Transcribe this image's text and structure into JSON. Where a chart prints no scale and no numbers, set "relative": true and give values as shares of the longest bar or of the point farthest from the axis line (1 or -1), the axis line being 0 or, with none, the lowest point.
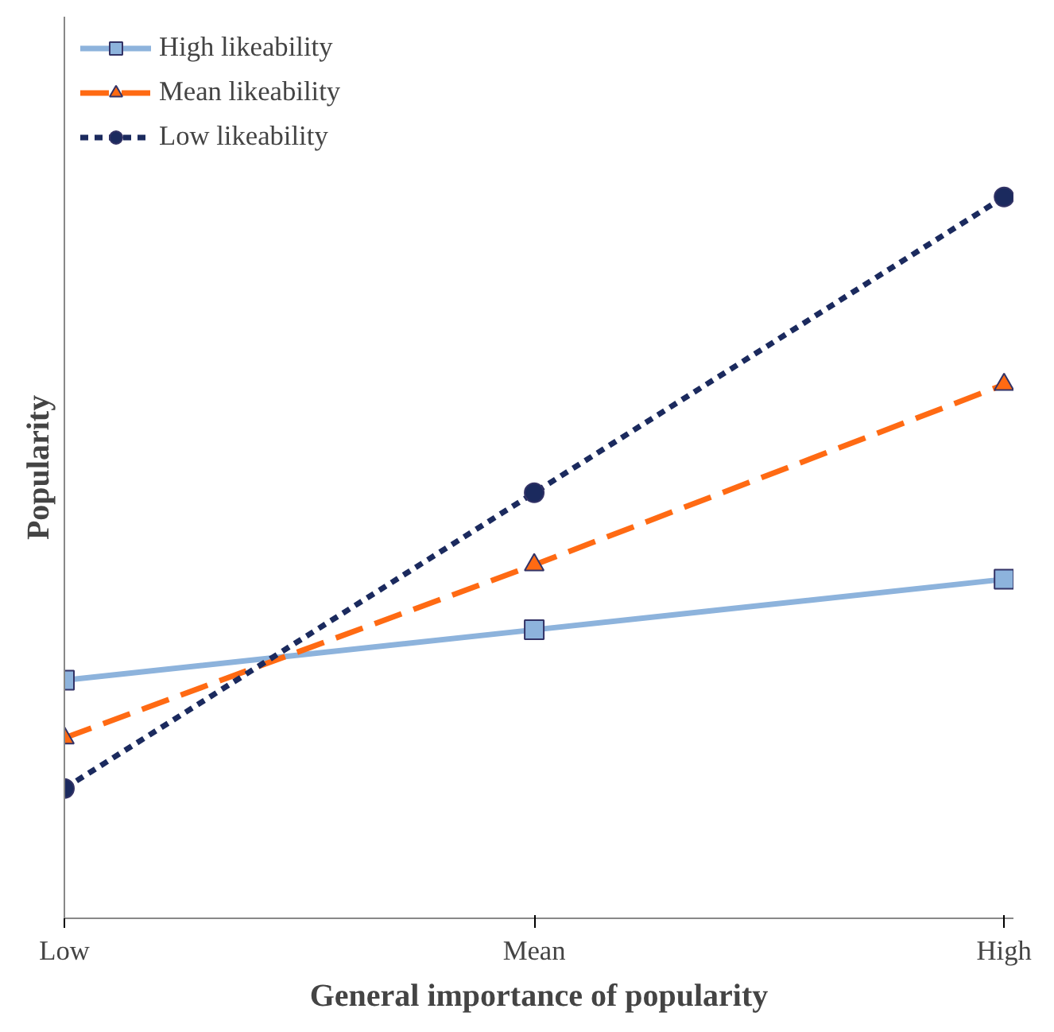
{
  "chart_data": {
    "type": "line",
    "relative": true,
    "xlabel": "General importance of popularity",
    "ylabel": "Popularity",
    "categories": [
      "Low",
      "Mean",
      "High"
    ],
    "legend": "top left",
    "grid": false,
    "series": [
      {
        "name": "High likeability",
        "color": "#8db3dc",
        "marker": "square",
        "line_style": "solid",
        "values": [
          0.33,
          0.4,
          0.47
        ]
      },
      {
        "name": "Mean likeability",
        "color": "#ff6a13",
        "marker": "triangle",
        "line_style": "dashed",
        "values": [
          0.25,
          0.49,
          0.74
        ]
      },
      {
        "name": "Low likeability",
        "color": "#1b2a5e",
        "marker": "circle",
        "line_style": "dotted",
        "values": [
          0.18,
          0.59,
          1
        ]
      }
    ]
  }
}
